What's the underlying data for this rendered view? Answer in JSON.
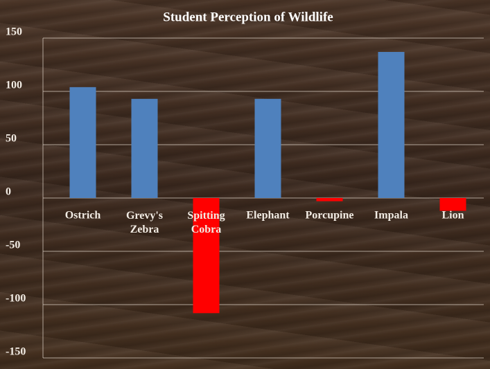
{
  "chart_data": {
    "type": "bar",
    "title": "Student Perception of Wildlife",
    "categories": [
      "Ostrich",
      "Grevy's Zebra",
      "Spitting Cobra",
      "Elephant",
      "Porcupine",
      "Impala",
      "Lion"
    ],
    "values": [
      104,
      93,
      -108,
      93,
      -3,
      137,
      -12
    ],
    "positive_color": "#4f81bd",
    "negative_color": "#ff0000",
    "ylim": [
      -150,
      150
    ],
    "yticks": [
      -150,
      -100,
      -50,
      0,
      50,
      100,
      150
    ],
    "grid": true
  }
}
